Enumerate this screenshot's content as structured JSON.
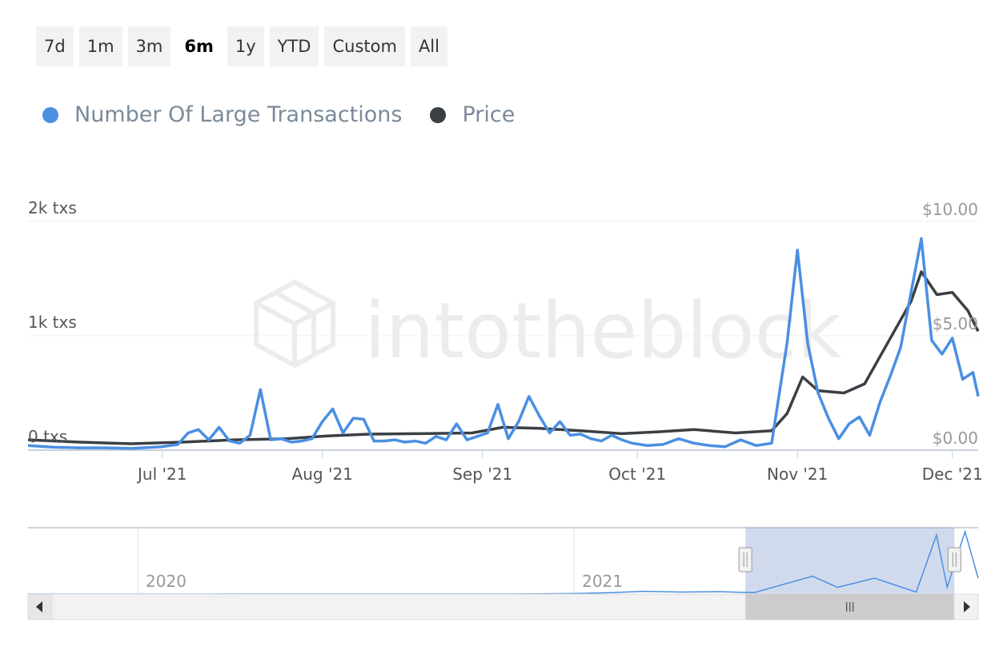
{
  "range_selector": {
    "buttons": [
      "7d",
      "1m",
      "3m",
      "6m",
      "1y",
      "YTD",
      "Custom",
      "All"
    ],
    "selected": "6m"
  },
  "legend": [
    {
      "label": "Number Of Large Transactions",
      "color": "#4a8fe2"
    },
    {
      "label": "Price",
      "color": "#3a3f44"
    }
  ],
  "watermark": "intotheblock",
  "navigator": {
    "year_labels": [
      "2020",
      "2021"
    ],
    "scroll_left_icon": "triangle-left-icon",
    "scroll_right_icon": "triangle-right-icon",
    "scroll_grip_icon": "grip-icon",
    "handle_icon": "handle-grip-icon",
    "window_start": 0.755,
    "window_end": 0.975
  },
  "chart_data": {
    "type": "line",
    "x_start": "2021-06-05",
    "x_end": "2021-12-06",
    "x_ticks": [
      {
        "date": "2021-07-01",
        "label": "Jul '21"
      },
      {
        "date": "2021-08-01",
        "label": "Aug '21"
      },
      {
        "date": "2021-09-01",
        "label": "Sep '21"
      },
      {
        "date": "2021-10-01",
        "label": "Oct '21"
      },
      {
        "date": "2021-11-01",
        "label": "Nov '21"
      },
      {
        "date": "2021-12-01",
        "label": "Dec '21"
      }
    ],
    "y_left": {
      "min": 0,
      "max": 2000,
      "ticks": [
        {
          "value": 0,
          "label": "0 txs"
        },
        {
          "value": 1000,
          "label": "1k txs"
        },
        {
          "value": 2000,
          "label": "2k txs"
        }
      ]
    },
    "y_right": {
      "min": 0,
      "max": 10,
      "ticks": [
        {
          "value": 0,
          "label": "$0.00"
        },
        {
          "value": 5,
          "label": "$5.00"
        },
        {
          "value": 10,
          "label": "$10.00"
        }
      ]
    },
    "grid": true,
    "legend_position": "top-left",
    "series": [
      {
        "name": "Number Of Large Transactions",
        "axis": "left",
        "color": "#4a8fe2",
        "points": [
          [
            "2021-06-05",
            40
          ],
          [
            "2021-06-10",
            25
          ],
          [
            "2021-06-15",
            20
          ],
          [
            "2021-06-20",
            20
          ],
          [
            "2021-06-25",
            15
          ],
          [
            "2021-07-01",
            30
          ],
          [
            "2021-07-04",
            50
          ],
          [
            "2021-07-06",
            150
          ],
          [
            "2021-07-08",
            180
          ],
          [
            "2021-07-10",
            90
          ],
          [
            "2021-07-12",
            200
          ],
          [
            "2021-07-14",
            80
          ],
          [
            "2021-07-16",
            60
          ],
          [
            "2021-07-18",
            130
          ],
          [
            "2021-07-20",
            530
          ],
          [
            "2021-07-22",
            90
          ],
          [
            "2021-07-24",
            100
          ],
          [
            "2021-07-26",
            70
          ],
          [
            "2021-07-28",
            80
          ],
          [
            "2021-07-30",
            100
          ],
          [
            "2021-08-01",
            250
          ],
          [
            "2021-08-03",
            360
          ],
          [
            "2021-08-05",
            150
          ],
          [
            "2021-08-07",
            280
          ],
          [
            "2021-08-09",
            270
          ],
          [
            "2021-08-11",
            80
          ],
          [
            "2021-08-13",
            80
          ],
          [
            "2021-08-15",
            90
          ],
          [
            "2021-08-17",
            70
          ],
          [
            "2021-08-19",
            80
          ],
          [
            "2021-08-21",
            60
          ],
          [
            "2021-08-23",
            120
          ],
          [
            "2021-08-25",
            90
          ],
          [
            "2021-08-27",
            230
          ],
          [
            "2021-08-29",
            90
          ],
          [
            "2021-08-31",
            120
          ],
          [
            "2021-09-02",
            150
          ],
          [
            "2021-09-04",
            400
          ],
          [
            "2021-09-06",
            100
          ],
          [
            "2021-09-08",
            250
          ],
          [
            "2021-09-10",
            470
          ],
          [
            "2021-09-12",
            300
          ],
          [
            "2021-09-14",
            150
          ],
          [
            "2021-09-16",
            250
          ],
          [
            "2021-09-18",
            130
          ],
          [
            "2021-09-20",
            140
          ],
          [
            "2021-09-22",
            100
          ],
          [
            "2021-09-24",
            80
          ],
          [
            "2021-09-26",
            130
          ],
          [
            "2021-09-28",
            90
          ],
          [
            "2021-09-30",
            60
          ],
          [
            "2021-10-03",
            40
          ],
          [
            "2021-10-06",
            50
          ],
          [
            "2021-10-09",
            100
          ],
          [
            "2021-10-12",
            60
          ],
          [
            "2021-10-15",
            40
          ],
          [
            "2021-10-18",
            30
          ],
          [
            "2021-10-21",
            90
          ],
          [
            "2021-10-24",
            40
          ],
          [
            "2021-10-27",
            60
          ],
          [
            "2021-10-30",
            940
          ],
          [
            "2021-11-01",
            1750
          ],
          [
            "2021-11-03",
            930
          ],
          [
            "2021-11-05",
            500
          ],
          [
            "2021-11-07",
            280
          ],
          [
            "2021-11-09",
            100
          ],
          [
            "2021-11-11",
            230
          ],
          [
            "2021-11-13",
            290
          ],
          [
            "2021-11-15",
            130
          ],
          [
            "2021-11-17",
            420
          ],
          [
            "2021-11-19",
            650
          ],
          [
            "2021-11-21",
            900
          ],
          [
            "2021-11-23",
            1380
          ],
          [
            "2021-11-25",
            1850
          ],
          [
            "2021-11-27",
            960
          ],
          [
            "2021-11-29",
            840
          ],
          [
            "2021-12-01",
            980
          ],
          [
            "2021-12-03",
            620
          ],
          [
            "2021-12-05",
            680
          ],
          [
            "2021-12-06",
            470
          ]
        ]
      },
      {
        "name": "Price",
        "axis": "right",
        "color": "#3a3f44",
        "points": [
          [
            "2021-06-05",
            0.45
          ],
          [
            "2021-06-15",
            0.35
          ],
          [
            "2021-06-25",
            0.28
          ],
          [
            "2021-07-05",
            0.35
          ],
          [
            "2021-07-15",
            0.45
          ],
          [
            "2021-07-25",
            0.5
          ],
          [
            "2021-08-02",
            0.62
          ],
          [
            "2021-08-10",
            0.7
          ],
          [
            "2021-08-20",
            0.72
          ],
          [
            "2021-08-30",
            0.75
          ],
          [
            "2021-09-05",
            1.0
          ],
          [
            "2021-09-12",
            0.95
          ],
          [
            "2021-09-20",
            0.85
          ],
          [
            "2021-09-28",
            0.72
          ],
          [
            "2021-10-05",
            0.8
          ],
          [
            "2021-10-12",
            0.9
          ],
          [
            "2021-10-20",
            0.75
          ],
          [
            "2021-10-27",
            0.85
          ],
          [
            "2021-10-30",
            1.6
          ],
          [
            "2021-11-02",
            3.2
          ],
          [
            "2021-11-05",
            2.6
          ],
          [
            "2021-11-10",
            2.5
          ],
          [
            "2021-11-14",
            2.9
          ],
          [
            "2021-11-18",
            4.5
          ],
          [
            "2021-11-23",
            6.5
          ],
          [
            "2021-11-25",
            7.8
          ],
          [
            "2021-11-28",
            6.8
          ],
          [
            "2021-12-01",
            6.9
          ],
          [
            "2021-12-04",
            6.1
          ],
          [
            "2021-12-06",
            5.2
          ]
        ]
      }
    ],
    "navigator_series": [
      [
        "2019-10-01",
        0
      ],
      [
        "2020-06-01",
        2
      ],
      [
        "2020-12-01",
        5
      ],
      [
        "2021-01-05",
        20
      ],
      [
        "2021-02-01",
        40
      ],
      [
        "2021-03-01",
        80
      ],
      [
        "2021-04-01",
        60
      ],
      [
        "2021-05-01",
        70
      ],
      [
        "2021-06-01",
        40
      ],
      [
        "2021-07-20",
        530
      ],
      [
        "2021-08-10",
        200
      ],
      [
        "2021-09-10",
        470
      ],
      [
        "2021-10-15",
        60
      ],
      [
        "2021-11-01",
        1750
      ],
      [
        "2021-11-10",
        200
      ],
      [
        "2021-11-25",
        1850
      ],
      [
        "2021-12-06",
        470
      ]
    ]
  }
}
